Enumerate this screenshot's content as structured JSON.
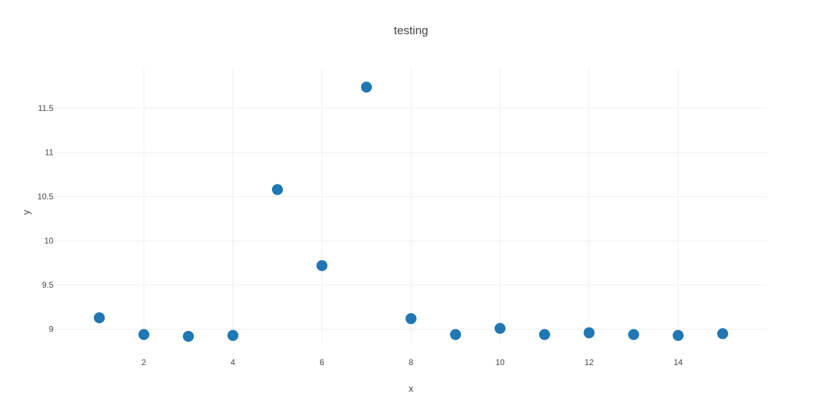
{
  "chart_data": {
    "type": "scatter",
    "title": "testing",
    "xlabel": "x",
    "ylabel": "y",
    "xlim": [
      0.0,
      16.0
    ],
    "ylim": [
      8.85,
      11.95
    ],
    "xticks": [
      2,
      4,
      6,
      8,
      10,
      12,
      14
    ],
    "xtick_labels": [
      "2",
      "4",
      "6",
      "8",
      "10",
      "12",
      "14"
    ],
    "yticks": [
      9,
      9.5,
      10,
      10.5,
      11,
      11.5
    ],
    "ytick_labels": [
      "9",
      "9.5",
      "10",
      "10.5",
      "11",
      "11.5"
    ],
    "grid": true,
    "legend": "none",
    "marker_color": "#1f77b4",
    "series": [
      {
        "x": [
          1,
          2,
          3,
          4,
          5,
          6,
          7,
          8,
          9,
          10,
          11,
          12,
          13,
          14,
          15
        ],
        "y": [
          9.13,
          8.94,
          8.92,
          8.93,
          10.58,
          9.72,
          11.74,
          9.12,
          8.94,
          9.01,
          8.94,
          8.96,
          8.94,
          8.93,
          8.95
        ]
      }
    ]
  }
}
